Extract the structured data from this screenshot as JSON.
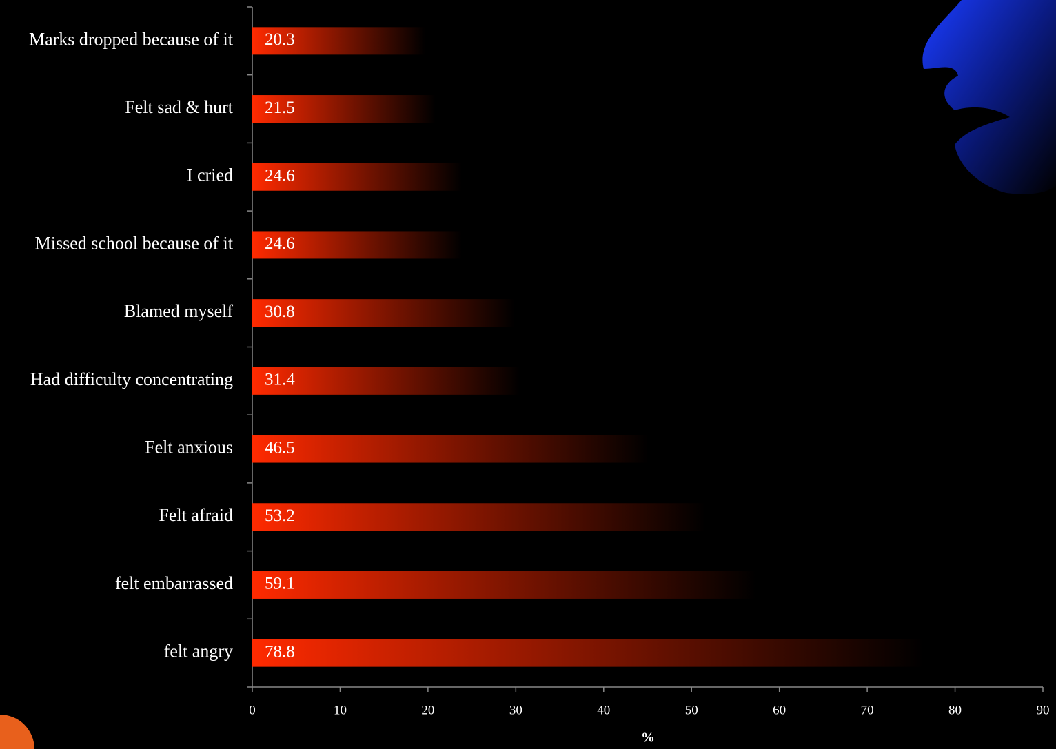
{
  "chart_data": {
    "type": "bar",
    "orientation": "horizontal",
    "categories": [
      "Marks dropped because of it",
      "Felt sad & hurt",
      "I cried",
      "Missed school because of it",
      "Blamed myself",
      "Had difficulty concentrating",
      "Felt anxious",
      "Felt afraid",
      "felt embarrassed",
      "felt angry"
    ],
    "values": [
      20.3,
      21.5,
      24.6,
      24.6,
      30.8,
      31.4,
      46.5,
      53.2,
      59.1,
      78.8
    ],
    "color": "#ff2a00",
    "x_label": "%",
    "xlim": [
      0,
      90
    ],
    "xticks": [
      0,
      10,
      20,
      30,
      40,
      50,
      60,
      70,
      80,
      90
    ]
  }
}
